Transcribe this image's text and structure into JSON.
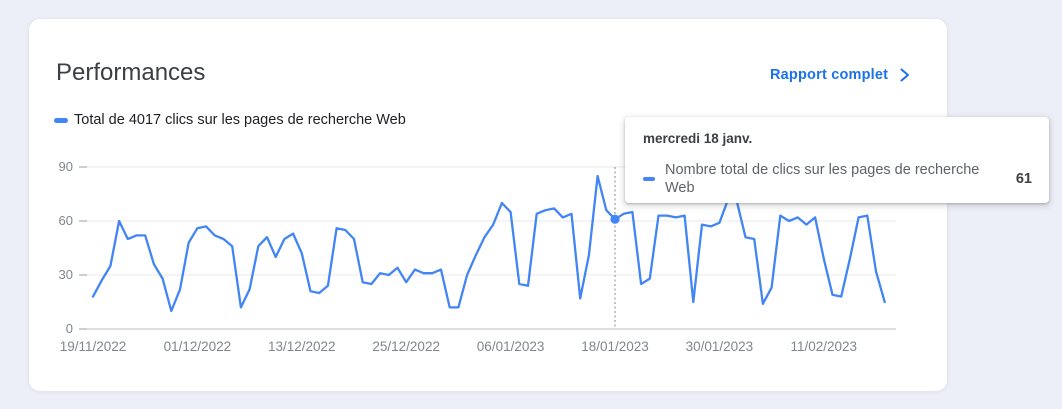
{
  "page": {
    "background_color": "#edeff8"
  },
  "card": {
    "title": "Performances",
    "report_link": {
      "label": "Rapport complet"
    }
  },
  "tooltip": {
    "title": "mercredi 18 janv.",
    "series_label": "Nombre total de clics sur les pages de recherche Web",
    "value": "61"
  },
  "colors": {
    "series_blue": "#4285f4",
    "link_blue": "#1a73e8",
    "axis_text": "#80868b",
    "gridline": "#e8eaed",
    "baseline": "#b9bdc3"
  },
  "chart_data": {
    "type": "line",
    "title": "Total de 4017 clics sur les pages de recherche Web",
    "total_clicks": 4017,
    "grid": true,
    "legend_position": "top-left",
    "x_axis": {
      "unit": "day",
      "tick_interval_days": 12,
      "tick_labels": [
        "19/11/2022",
        "01/12/2022",
        "13/12/2022",
        "25/12/2022",
        "06/01/2023",
        "18/01/2023",
        "30/01/2023",
        "11/02/2023"
      ]
    },
    "y_axis": {
      "ticks": [
        0,
        30,
        60,
        90
      ],
      "range": [
        0,
        90
      ]
    },
    "series": [
      {
        "name": "Nombre total de clics sur les pages de recherche Web",
        "color": "#4285f4",
        "start_date": "19/11/2022",
        "end_date": "18/02/2023",
        "values": [
          18,
          27,
          35,
          60,
          50,
          52,
          52,
          36,
          28,
          10,
          22,
          48,
          56,
          57,
          52,
          50,
          46,
          12,
          22,
          46,
          51,
          40,
          50,
          53,
          42,
          21,
          20,
          24,
          56,
          55,
          50,
          26,
          25,
          31,
          30,
          34,
          26,
          33,
          31,
          31,
          33,
          12,
          12,
          30,
          41,
          51,
          58,
          70,
          65,
          25,
          24,
          64,
          66,
          67,
          62,
          64,
          17,
          41,
          85,
          66,
          61,
          64,
          65,
          25,
          28,
          63,
          63,
          62,
          63,
          15,
          58,
          57,
          59,
          72,
          71,
          51,
          50,
          14,
          23,
          63,
          60,
          62,
          58,
          62,
          39,
          19,
          18,
          39,
          62,
          63,
          32,
          15
        ]
      }
    ],
    "highlight": {
      "index": 60,
      "date_label": "mercredi 18 janv.",
      "value": 61
    }
  }
}
